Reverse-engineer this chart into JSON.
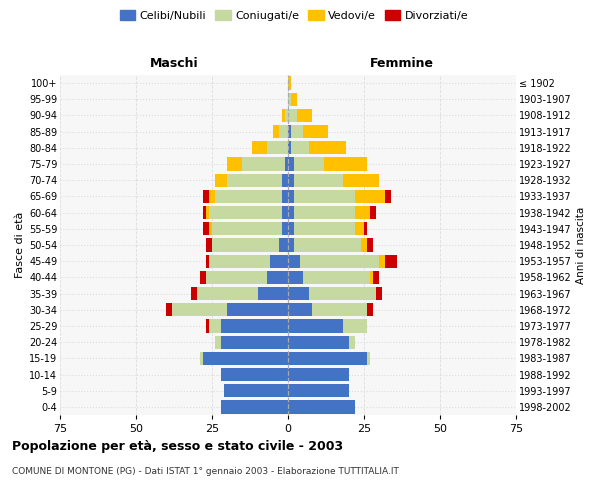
{
  "age_groups": [
    "0-4",
    "5-9",
    "10-14",
    "15-19",
    "20-24",
    "25-29",
    "30-34",
    "35-39",
    "40-44",
    "45-49",
    "50-54",
    "55-59",
    "60-64",
    "65-69",
    "70-74",
    "75-79",
    "80-84",
    "85-89",
    "90-94",
    "95-99",
    "100+"
  ],
  "birth_years": [
    "1998-2002",
    "1993-1997",
    "1988-1992",
    "1983-1987",
    "1978-1982",
    "1973-1977",
    "1968-1972",
    "1963-1967",
    "1958-1962",
    "1953-1957",
    "1948-1952",
    "1943-1947",
    "1938-1942",
    "1933-1937",
    "1928-1932",
    "1923-1927",
    "1918-1922",
    "1913-1917",
    "1908-1912",
    "1903-1907",
    "≤ 1902"
  ],
  "colors": {
    "celibi": "#4472c4",
    "coniugati": "#c5d9a0",
    "vedovi": "#ffc000",
    "divorziati": "#cc0000"
  },
  "maschi": {
    "celibi": [
      22,
      21,
      22,
      28,
      22,
      22,
      20,
      10,
      7,
      6,
      3,
      2,
      2,
      2,
      2,
      1,
      0,
      0,
      0,
      0,
      0
    ],
    "coniugati": [
      0,
      0,
      0,
      1,
      2,
      4,
      18,
      20,
      20,
      20,
      22,
      23,
      24,
      22,
      18,
      14,
      7,
      3,
      1,
      0,
      0
    ],
    "vedovi": [
      0,
      0,
      0,
      0,
      0,
      0,
      0,
      0,
      0,
      0,
      0,
      1,
      1,
      2,
      4,
      5,
      5,
      2,
      1,
      0,
      0
    ],
    "divorziati": [
      0,
      0,
      0,
      0,
      0,
      1,
      2,
      2,
      2,
      1,
      2,
      2,
      1,
      2,
      0,
      0,
      0,
      0,
      0,
      0,
      0
    ]
  },
  "femmine": {
    "celibi": [
      22,
      20,
      20,
      26,
      20,
      18,
      8,
      7,
      5,
      4,
      2,
      2,
      2,
      2,
      2,
      2,
      1,
      1,
      0,
      0,
      0
    ],
    "coniugati": [
      0,
      0,
      0,
      1,
      2,
      8,
      18,
      22,
      22,
      26,
      22,
      20,
      20,
      20,
      16,
      10,
      6,
      4,
      3,
      1,
      0
    ],
    "vedovi": [
      0,
      0,
      0,
      0,
      0,
      0,
      0,
      0,
      1,
      2,
      2,
      3,
      5,
      10,
      12,
      14,
      12,
      8,
      5,
      2,
      1
    ],
    "divorziati": [
      0,
      0,
      0,
      0,
      0,
      0,
      2,
      2,
      2,
      4,
      2,
      1,
      2,
      2,
      0,
      0,
      0,
      0,
      0,
      0,
      0
    ]
  },
  "xlim": 75,
  "title": "Popolazione per età, sesso e stato civile - 2003",
  "subtitle": "COMUNE DI MONTONE (PG) - Dati ISTAT 1° gennaio 2003 - Elaborazione TUTTITALIA.IT",
  "ylabel_left": "Fasce di età",
  "ylabel_right": "Anni di nascita",
  "xlabel_maschi": "Maschi",
  "xlabel_femmine": "Femmine",
  "legend_labels": [
    "Celibi/Nubili",
    "Coniugati/e",
    "Vedovi/e",
    "Divorziati/e"
  ],
  "bg_color": "#ffffff",
  "plot_bg": "#f7f7f7",
  "grid_color": "#dddddd"
}
